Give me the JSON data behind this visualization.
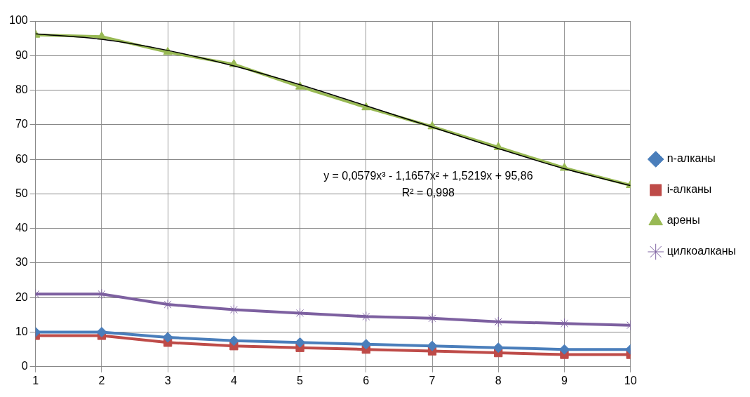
{
  "chart_data": {
    "type": "line",
    "x": [
      1,
      2,
      3,
      4,
      5,
      6,
      7,
      8,
      9,
      10
    ],
    "xlim": [
      1,
      10
    ],
    "xticks": [
      1,
      2,
      3,
      4,
      5,
      6,
      7,
      8,
      9,
      10
    ],
    "ylim": [
      0,
      100
    ],
    "yticks": [
      0,
      10,
      20,
      30,
      40,
      50,
      60,
      70,
      80,
      90,
      100
    ],
    "grid": true,
    "legend": "right",
    "line_style": "solid",
    "series": [
      {
        "name": "n-алканы",
        "color": "#4a7ebb",
        "marker": "diamond",
        "values": [
          10,
          10,
          8.5,
          7.5,
          7,
          6.5,
          6,
          5.5,
          5,
          5
        ]
      },
      {
        "name": "i-алканы",
        "color": "#be4b48",
        "marker": "square",
        "values": [
          9,
          9,
          7,
          6,
          5.5,
          5,
          4.5,
          4,
          3.5,
          3.5
        ]
      },
      {
        "name": "арены",
        "color": "#98b954",
        "marker": "triangle",
        "values": [
          96,
          95.5,
          91,
          87.5,
          81,
          75,
          69.5,
          63.5,
          57.5,
          52.5
        ]
      },
      {
        "name": "цилкоалканы",
        "color": "#7d60a0",
        "marker": "cross",
        "values": [
          21,
          21,
          18,
          16.5,
          15.5,
          14.5,
          14,
          13,
          12.5,
          12
        ]
      },
      {
        "type": "line",
        "color": "#000000",
        "marker": "none",
        "x": [
          1,
          2,
          3,
          4,
          5,
          6,
          7,
          8,
          9,
          10
        ],
        "values": [
          96.3,
          94.7,
          91.5,
          87.0,
          81.6,
          75.5,
          69.3,
          63.1,
          57.3,
          52.4
        ]
      }
    ],
    "annotations": [
      "y = 0,0579x³ - 1,1657x² + 1,5219x + 95,86",
      "R² = 0,998"
    ]
  }
}
